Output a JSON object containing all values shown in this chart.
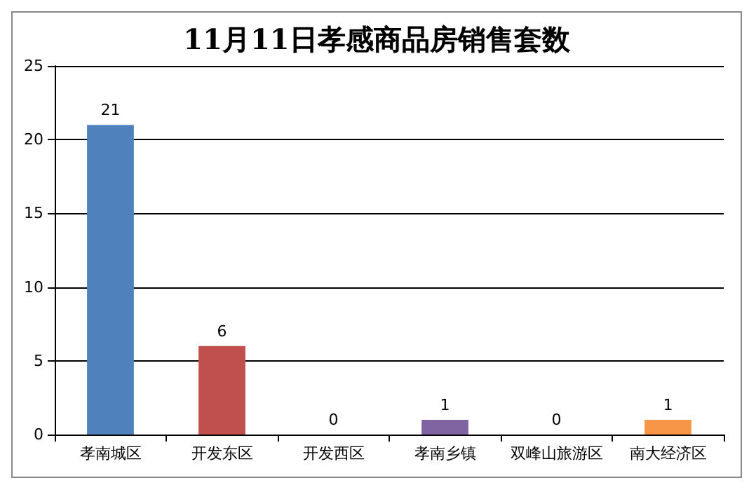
{
  "chart_data": {
    "type": "bar",
    "title": "11月11日孝感商品房销售套数",
    "categories": [
      "孝南城区",
      "开发东区",
      "开发西区",
      "孝南乡镇",
      "双峰山旅游区",
      "南大经济区"
    ],
    "values": [
      21,
      6,
      0,
      1,
      0,
      1
    ],
    "colors": [
      "#4f81bd",
      "#c0504d",
      "#9bbb59",
      "#8064a2",
      "#4bacc6",
      "#f79646"
    ],
    "ylim": [
      0,
      25
    ],
    "yticks": [
      0,
      5,
      10,
      15,
      20,
      25
    ],
    "grid": "y",
    "data_labels": true
  }
}
